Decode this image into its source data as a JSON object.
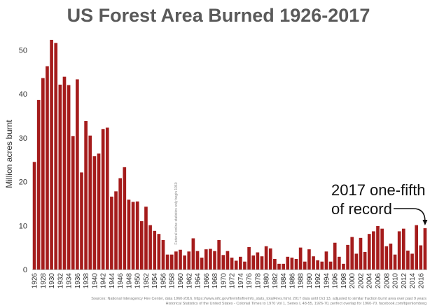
{
  "chart_data": {
    "type": "bar",
    "title": "US Forest Area Burned 1926-2017",
    "ylabel": "Million acres burnt",
    "xlabel": "",
    "ylim": [
      0,
      55
    ],
    "y_ticks": [
      0,
      10,
      20,
      30,
      40,
      50
    ],
    "x_start": 1926,
    "x_end": 2017,
    "x_tick_labels": [
      "1926",
      "1928",
      "1930",
      "1932",
      "1934",
      "1936",
      "1938",
      "1940",
      "1942",
      "1944",
      "1946",
      "1948",
      "1950",
      "1952",
      "1954",
      "1956",
      "1958",
      "1960",
      "1962",
      "1964",
      "1966",
      "1968",
      "1970",
      "1972",
      "1974",
      "1976",
      "1978",
      "1980",
      "1982",
      "1984",
      "1986",
      "1988",
      "1990",
      "1992",
      "1994",
      "1996",
      "1998",
      "2000",
      "2002",
      "2004",
      "2006",
      "2008",
      "2010",
      "2012",
      "2014",
      "2016"
    ],
    "bar_color": "#a51c1c",
    "grid": false,
    "legend": "none",
    "values": [
      24.5,
      38.6,
      43.6,
      46.3,
      52.3,
      51.6,
      42.1,
      43.9,
      42.0,
      30.4,
      43.3,
      22.1,
      33.8,
      30.5,
      25.8,
      26.4,
      32.0,
      32.3,
      16.6,
      17.8,
      20.8,
      23.3,
      15.9,
      15.4,
      15.5,
      11.0,
      14.3,
      10.1,
      8.8,
      8.1,
      6.7,
      3.4,
      3.4,
      4.1,
      4.5,
      3.2,
      4.1,
      7.1,
      4.2,
      2.7,
      4.6,
      4.7,
      4.2,
      6.7,
      3.3,
      4.2,
      2.7,
      2.0,
      2.9,
      1.8,
      5.1,
      3.2,
      3.9,
      3.0,
      5.3,
      4.8,
      2.4,
      1.3,
      1.3,
      2.9,
      2.7,
      2.4,
      5.0,
      1.8,
      4.6,
      3.0,
      2.1,
      1.8,
      4.1,
      1.8,
      6.1,
      2.9,
      1.3,
      5.6,
      7.4,
      3.6,
      7.2,
      4.0,
      8.1,
      8.7,
      9.9,
      9.3,
      5.3,
      5.9,
      3.4,
      8.7,
      9.3,
      4.3,
      3.6,
      10.1,
      5.5,
      9.4
    ],
    "annotations": [
      {
        "text_lines": [
          "2017 one-fifth",
          "of record"
        ],
        "target_year": 2017
      }
    ],
    "vertical_note": "Federal online statistics only begin 1960",
    "source_lines": [
      "Sources: National Interagency Fire Center, data 1960-2016, https://www.nifc.gov/fireInfo/fireInfo_stats_totalFires.html, 2017 data until Oct 13, adjusted to similar fraction burnt area over past 9 years",
      "Historical Statistics of the United States - Colonial Times to 1970 Vol 1, Series L 48-55, 1926-70, perfect overlap for 1960-70. facebook.com/bjornlomborg"
    ]
  }
}
